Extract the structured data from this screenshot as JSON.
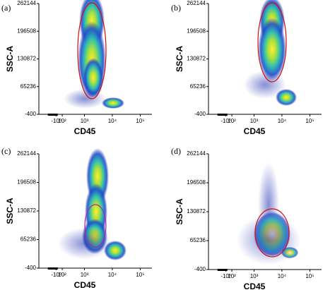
{
  "chart_data": [
    {
      "type": "density",
      "panel_label": "(a)",
      "xlabel": "CD45",
      "ylabel": "SSC-A",
      "xlim": [
        -400,
        262144
      ],
      "ylim": [
        -400,
        262144
      ],
      "yticks": [
        -400,
        65236,
        130872,
        196508,
        262144
      ],
      "xticks": [
        {
          "value": -1,
          "label": "-10⁰"
        },
        {
          "value": 100,
          "label": "10²"
        },
        {
          "value": 1000,
          "label": "10³"
        },
        {
          "value": 10000,
          "label": "10⁴"
        },
        {
          "value": 100000,
          "label": "10⁵"
        }
      ]
    },
    {
      "type": "density",
      "panel_label": "(b)",
      "xlabel": "CD45",
      "ylabel": "SSC-A",
      "xlim": [
        -400,
        262144
      ],
      "ylim": [
        -400,
        262144
      ],
      "yticks": [
        -400,
        65236,
        130872,
        196508,
        262144
      ],
      "xticks": [
        {
          "value": -1,
          "label": "-10⁰"
        },
        {
          "value": 100,
          "label": "10²"
        },
        {
          "value": 1000,
          "label": "10³"
        },
        {
          "value": 10000,
          "label": "10⁴"
        },
        {
          "value": 100000,
          "label": "10⁵"
        }
      ]
    },
    {
      "type": "density",
      "panel_label": "(c)",
      "xlabel": "CD45",
      "ylabel": "SSC-A",
      "xlim": [
        -400,
        262144
      ],
      "ylim": [
        -400,
        262144
      ],
      "yticks": [
        -400,
        65236,
        130872,
        196508,
        262144
      ],
      "xticks": [
        {
          "value": -1,
          "label": "-10⁰"
        },
        {
          "value": 100,
          "label": "10²"
        },
        {
          "value": 1000,
          "label": "10³"
        },
        {
          "value": 10000,
          "label": "10⁴"
        },
        {
          "value": 100000,
          "label": "10⁵"
        }
      ]
    },
    {
      "type": "density",
      "panel_label": "(d)",
      "xlabel": "CD45",
      "ylabel": "SSC-A",
      "xlim": [
        -400,
        262144
      ],
      "ylim": [
        -400,
        262144
      ],
      "yticks": [
        -400,
        65236,
        130872,
        196508,
        262144
      ],
      "xticks": [
        {
          "value": -1,
          "label": "-10⁰"
        },
        {
          "value": 100,
          "label": "10²"
        },
        {
          "value": 1000,
          "label": "10³"
        },
        {
          "value": 10000,
          "label": "10⁴"
        },
        {
          "value": 100000,
          "label": "10⁵"
        }
      ]
    }
  ]
}
